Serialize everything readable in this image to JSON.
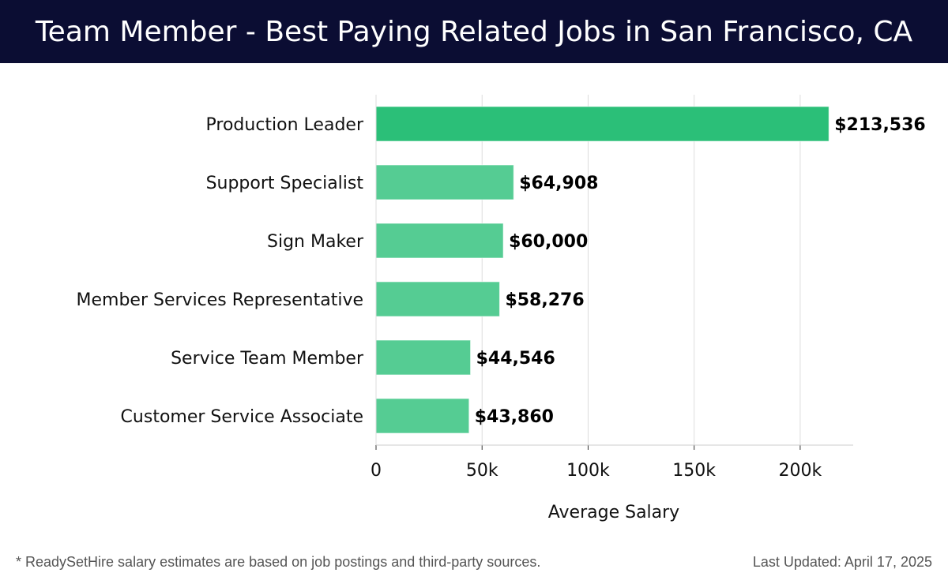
{
  "header": {
    "title": "Team Member - Best Paying Related Jobs in San Francisco, CA"
  },
  "colors": {
    "header_bg": "#0b0d33",
    "top_bar": "#2bbf78",
    "other_bars": "#55cc93"
  },
  "chart_data": {
    "type": "bar",
    "orientation": "horizontal",
    "categories": [
      "Production Leader",
      "Support Specialist",
      "Sign Maker",
      "Member Services Representative",
      "Service Team Member",
      "Customer Service Associate"
    ],
    "values": [
      213536,
      64908,
      60000,
      58276,
      44546,
      43860
    ],
    "value_labels": [
      "$213,536",
      "$64,908",
      "$60,000",
      "$58,276",
      "$44,546",
      "$43,860"
    ],
    "xlabel": "Average Salary",
    "xlim": [
      0,
      225000
    ],
    "xticks": [
      0,
      50000,
      100000,
      150000,
      200000
    ],
    "xtick_labels": [
      "0",
      "50k",
      "100k",
      "150k",
      "200k"
    ],
    "grid": "vertical"
  },
  "footer": {
    "note": "* ReadySetHire salary estimates are based on job postings and third-party sources.",
    "updated": "Last Updated: April 17, 2025"
  }
}
